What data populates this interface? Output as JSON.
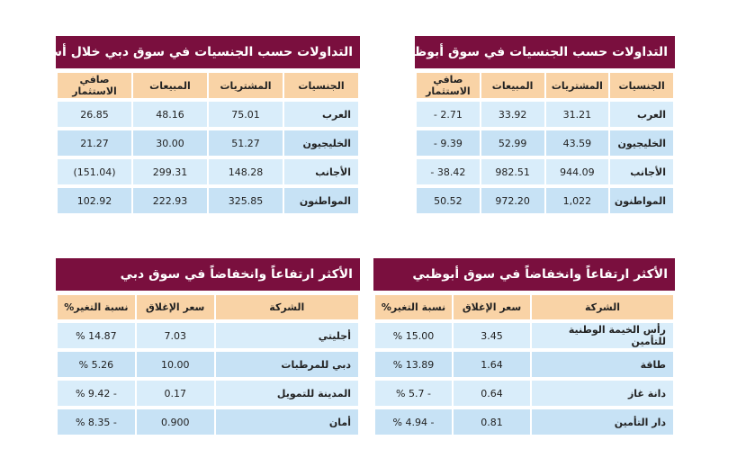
{
  "tables": [
    {
      "title": "التداولات حسب الجنسيات في سوق دبي خلال أسبوع",
      "headers": [
        "الجنسيات",
        "المشتريات",
        "المبيعات",
        "صافي الاستثمار"
      ],
      "rows": [
        [
          "العرب",
          "75.01",
          "48.16",
          "26.85"
        ],
        [
          "الخليجيون",
          "51.27",
          "30.00",
          "21.27"
        ],
        [
          "الأجانب",
          "148.28",
          "299.31",
          "(151.04)"
        ],
        [
          "المواطنون",
          "325.85",
          "222.93",
          "102.92"
        ]
      ]
    },
    {
      "title": "التداولات حسب الجنسيات في سوق أبوظبي",
      "headers": [
        "الجنسيات",
        "المشتريات",
        "المبيعات",
        "صافي الاستثمار"
      ],
      "rows": [
        [
          "العرب",
          "31.21",
          "33.92",
          "- 2.71"
        ],
        [
          "الخليجيون",
          "43.59",
          "52.99",
          "- 9.39"
        ],
        [
          "الأجانب",
          "944.09",
          "982.51",
          "- 38.42"
        ],
        [
          "المواطنون",
          "1,022",
          "972.20",
          "50.52"
        ]
      ]
    },
    {
      "title": "الأكثر ارتفاعاً وانخفاضاً في سوق دبي",
      "headers": [
        "الشركة",
        "سعر الإغلاق",
        "نسبة التغير%"
      ],
      "rows": [
        [
          "أجليتي",
          "7.03",
          "% 14.87"
        ],
        [
          "دبي للمرطبات",
          "10.00",
          "% 5.26"
        ],
        [
          "المدينة للتمويل",
          "0.17",
          "% 9.42 -"
        ],
        [
          "أمان",
          "0.900",
          "% 8.35 -"
        ]
      ]
    },
    {
      "title": "الأكثر ارتفاعاً وانخفاضاً في سوق أبوظبي",
      "headers": [
        "الشركة",
        "سعر الإغلاق",
        "نسبة التغير%"
      ],
      "rows": [
        [
          "رأس الخيمة الوطنية للتأمين",
          "3.45",
          "% 15.00"
        ],
        [
          "طاقة",
          "1.64",
          "% 13.89"
        ],
        [
          "دانة غاز",
          "0.64",
          "% 5.7 -"
        ],
        [
          "دار التأمين",
          "0.81",
          "% 4.94 -"
        ]
      ]
    }
  ]
}
